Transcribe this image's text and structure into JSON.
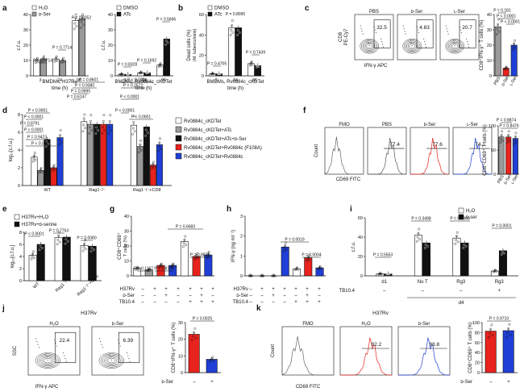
{
  "colors": {
    "red": "#e8221c",
    "blue": "#1f3fd6",
    "gray": "#9a9a9a",
    "black": "#111111",
    "white": "#ffffff"
  },
  "panel_letters": [
    "a",
    "b",
    "c",
    "d",
    "e",
    "f",
    "g",
    "h",
    "i",
    "j",
    "k"
  ],
  "chart_data": [
    {
      "id": "a1",
      "type": "bar",
      "panel": "a",
      "ylabel": "c.f.u.",
      "xlabel": "BMDMs, H37Rv",
      "xlabel2": "time (h)",
      "categories": [
        "3",
        "24",
        "96"
      ],
      "ylim": [
        0,
        40
      ],
      "yticks": [
        0,
        10,
        20,
        30,
        40
      ],
      "series": [
        {
          "name": "H₂O",
          "color": "white",
          "values": [
            10,
            11,
            36
          ]
        },
        {
          "name": "ᴅ-Ser",
          "color": "gray",
          "values": [
            11,
            10,
            37
          ]
        }
      ],
      "pvalues": [
        "P = 0.7714",
        "P = 0.7714",
        "P = 0.8352"
      ]
    },
    {
      "id": "a2",
      "type": "bar",
      "panel": "a",
      "ylabel": "c.f.u.",
      "xlabel": "BMDMs, Rv0884c_cKD",
      "xlabel_sup": "Tet",
      "xlabel2": "time (h)",
      "categories": [
        "3",
        "24",
        "96"
      ],
      "ylim": [
        0,
        40
      ],
      "yticks": [
        0,
        10,
        20,
        30,
        40
      ],
      "series": [
        {
          "name": "DMSO",
          "color": "white",
          "values": [
            1,
            2,
            7
          ]
        },
        {
          "name": "ATc",
          "color": "black",
          "values": [
            1,
            2,
            24
          ]
        }
      ],
      "pvalues": [
        "P = 0.8328",
        "P = 0.1692",
        "P = 0.5696"
      ]
    },
    {
      "id": "b",
      "type": "bar",
      "panel": "b",
      "ylabel": "Dead cells (%)",
      "ylabel2": "(M. tuberculosis)",
      "xlabel": "BMDMs, Rv0884c_cKD",
      "xlabel_sup": "Tet",
      "xlabel2": "time (h)",
      "categories": [
        "3",
        "24",
        "96"
      ],
      "ylim": [
        0,
        60
      ],
      "yticks": [
        0,
        20,
        40,
        60
      ],
      "series": [
        {
          "name": "DMSO",
          "color": "white",
          "values": [
            2,
            47,
            12
          ]
        },
        {
          "name": "ATc",
          "color": "black",
          "values": [
            2,
            47,
            10
          ]
        }
      ],
      "pvalues": [
        "P = 0.4705",
        "P = 0.8095",
        "P = 0.7439"
      ]
    },
    {
      "id": "c",
      "type": "bar",
      "panel": "c",
      "ylabel": "CD8⁺IFN-γ⁺ T cells (%)",
      "categories": [
        "PBS",
        "ᴅ-Ser",
        "ʟ-Ser"
      ],
      "ylim": [
        0,
        40
      ],
      "yticks": [
        0,
        10,
        20,
        30,
        40
      ],
      "series": [
        {
          "name": "",
          "values": [
            32,
            5,
            20
          ],
          "colors": [
            "gray",
            "red",
            "blue"
          ]
        }
      ],
      "pvalues": [
        "P = 0.181",
        "P < 0.0001",
        "P < 0.0001"
      ]
    },
    {
      "id": "d",
      "type": "bar",
      "panel": "d",
      "ylabel": "log₁₀[c.f.u.]",
      "categories": [
        "WT",
        "Rag1⁻/⁻",
        "Rag1⁻/⁻+CD8"
      ],
      "ylim": [
        0,
        8
      ],
      "yticks": [
        0,
        2,
        4,
        6,
        8
      ],
      "series": [
        {
          "name": "Rv0884c_cKD",
          "sup": "Tet",
          "color": "white",
          "values": [
            3.2,
            7.2,
            6.8
          ]
        },
        {
          "name": "Rv0884c_cKD",
          "sup": "Tet",
          "suffix": "+ATc",
          "color": "gray",
          "values": [
            1.7,
            6.9,
            4.4
          ]
        },
        {
          "name": "Rv0884c_cKD",
          "sup": "Tet",
          "suffix": "+ATc+ᴅ-Ser",
          "color": "black",
          "values": [
            5.2,
            6.9,
            6.6
          ]
        },
        {
          "name": "Rv0884c_cKD",
          "sup": "Tet",
          "suffix": "+Rv0884c (F108A)",
          "color": "red",
          "values": [
            2.0,
            6.9,
            2.3
          ]
        },
        {
          "name": "Rv0884c_cKD",
          "sup": "Tet",
          "suffix": "+Rv0884c",
          "color": "blue",
          "values": [
            5.4,
            6.9,
            4.6
          ]
        }
      ],
      "pvalues": [
        "P < 0.0001",
        "P = 0.9423",
        "P < 0.0001",
        "P = 0.8791",
        "P < 0.0001",
        "P < 0.0001",
        "P = 0.8601",
        "P = 0.9380",
        "P = 0.9995",
        "P = 0.6147",
        "P < 0.0001",
        "P = 0.2572",
        "P < 0.0001",
        "P < 0.0001",
        "P < 0.0001"
      ]
    },
    {
      "id": "e",
      "type": "bar",
      "panel": "e",
      "ylabel": "log₁₀[c.f.u.]",
      "categories": [
        "WT",
        "Rag1⁻/⁻",
        "Rag1⁻/⁻+CD8"
      ],
      "ylim": [
        0,
        8
      ],
      "yticks": [
        0,
        2,
        4,
        6,
        8
      ],
      "series": [
        {
          "name": "H37Rv+H₂O",
          "color": "white",
          "values": [
            4.2,
            7.1,
            5.8
          ]
        },
        {
          "name": "H37Rv+ᴅ-serine",
          "color": "black",
          "values": [
            6.0,
            7.2,
            5.7
          ]
        }
      ],
      "pvalues": [
        "P < 0.0001",
        "P = 0.7763",
        "P = 0.0080"
      ]
    },
    {
      "id": "f",
      "type": "bar",
      "panel": "f",
      "ylabel": "CD8⁺CD69⁺ T cells (%)",
      "categories": [
        "PBS",
        "ᴅ-Ser",
        "ʟ-Ser"
      ],
      "ylim": [
        0,
        100
      ],
      "yticks": [
        0,
        50,
        100
      ],
      "series": [
        {
          "name": "",
          "values": [
            77,
            77,
            74
          ],
          "colors": [
            "gray",
            "red",
            "blue"
          ]
        }
      ],
      "pvalues": [
        "P = 0.8874",
        "P = 0.8476"
      ]
    },
    {
      "id": "g",
      "type": "bar",
      "panel": "g",
      "ylabel": "CD8⁺CD69⁺",
      "ylabel2": "T cells (%)",
      "ylim": [
        0,
        40
      ],
      "yticks": [
        0,
        10,
        20,
        30,
        40
      ],
      "categories": [
        "1",
        "2",
        "3",
        "4",
        "5",
        "6",
        "7"
      ],
      "series": [
        {
          "name": "",
          "values": [
            5,
            4,
            7,
            7,
            23,
            13,
            14
          ],
          "colors": [
            "white",
            "gray",
            "red",
            "blue",
            "white",
            "red",
            "blue"
          ]
        }
      ],
      "pvalues": [
        "P = 0.1167",
        "P = 0.8739",
        "P = 0.6683",
        "P = 0.8833"
      ]
    },
    {
      "id": "h",
      "type": "bar",
      "panel": "h",
      "ylabel": "IFN-γ (ng ml⁻¹)",
      "ylim": [
        0,
        3
      ],
      "yticks": [
        0,
        1,
        2,
        3
      ],
      "categories": [
        "1",
        "2",
        "3",
        "4",
        "5",
        "6",
        "7"
      ],
      "series": [
        {
          "name": "",
          "values": [
            0,
            0,
            0,
            1.45,
            0.35,
            0.9,
            0.4
          ],
          "colors": [
            "white",
            "gray",
            "red",
            "blue",
            "white",
            "red",
            "blue"
          ]
        }
      ],
      "pvalues": [
        "P = 0.0019",
        "P = 0.0004"
      ]
    },
    {
      "id": "i",
      "type": "bar",
      "panel": "i",
      "ylabel": "c.f.u.",
      "ylim": [
        0,
        60
      ],
      "yticks": [
        0,
        20,
        40,
        60
      ],
      "categories": [
        "d1",
        "No T",
        "Rg3",
        "Rg3"
      ],
      "group_label": "d4",
      "series": [
        {
          "name": "H₂O",
          "color": "white",
          "values": [
            2,
            42,
            39,
            5
          ]
        },
        {
          "name": "ᴅ-ser",
          "color": "black",
          "values": [
            2,
            34,
            34,
            26
          ]
        }
      ],
      "pvalues": [
        "P = 0.5563",
        "P = 0.3498",
        "P = 0.9993",
        "P = 0.0001"
      ]
    },
    {
      "id": "j",
      "type": "bar",
      "panel": "j",
      "ylabel": "CD8⁺IFN-γ⁺ T cells (%)",
      "ylim": [
        0,
        30
      ],
      "yticks": [
        0,
        10,
        20,
        30
      ],
      "categories": [
        "–",
        "+"
      ],
      "series": [
        {
          "name": "",
          "values": [
            23,
            8
          ],
          "colors": [
            "red",
            "blue"
          ]
        }
      ],
      "pvalues": [
        "P = 0.0025"
      ]
    },
    {
      "id": "k",
      "type": "bar",
      "panel": "k",
      "ylabel": "CD8⁺CD69⁺ T cells (%)",
      "ylim": [
        0,
        100
      ],
      "yticks": [
        0,
        20,
        40,
        60,
        80,
        100
      ],
      "categories": [
        "–",
        "+"
      ],
      "series": [
        {
          "name": "",
          "values": [
            83,
            84
          ],
          "colors": [
            "red",
            "blue"
          ]
        }
      ],
      "pvalues": [
        "P = 0.9710"
      ]
    }
  ],
  "flow": {
    "c": {
      "yaxis": "CD8",
      "yaxis2": "PE-Cy7",
      "xaxis": "IFN-γ APC",
      "plots": [
        {
          "label": "PBS",
          "value": "32.5"
        },
        {
          "label": "ᴅ-Ser",
          "value": "4.83"
        },
        {
          "label": "ʟ-Ser",
          "value": "20.7"
        }
      ]
    },
    "f": {
      "yaxis": "Count",
      "xaxis": "CD69 FITC",
      "plots": [
        {
          "label": "FMO",
          "value": ""
        },
        {
          "label": "PBS",
          "value": "77.4"
        },
        {
          "label": "ᴅ-Ser",
          "value": "77.6"
        },
        {
          "label": "ʟ-Ser",
          "value": "74.1"
        }
      ]
    },
    "j": {
      "yaxis": "SSC",
      "xaxis": "IFN-γ APC",
      "title": "H37Rv",
      "plots": [
        {
          "label": "H₂O",
          "value": "22.4"
        },
        {
          "label": "ᴅ-Ser",
          "value": "6.39"
        }
      ]
    },
    "k": {
      "yaxis": "Count",
      "xaxis": "CD69 FITC",
      "title": "H37Rv",
      "plots": [
        {
          "label": "FMO",
          "value": ""
        },
        {
          "label": "H₂O",
          "value": "82.2"
        },
        {
          "label": "ᴅ-Ser",
          "value": "88.8"
        }
      ]
    }
  },
  "treatment_rows": {
    "g": {
      "rows": [
        "H37Rv",
        "ᴅ-Ser",
        "TB10.4"
      ]
    },
    "h": {
      "rows": [
        "H37Rv",
        "ᴅ-Ser",
        "TB10.4"
      ]
    },
    "i": {
      "rows": [
        "TB10.4"
      ],
      "d4": "d4"
    },
    "j": {
      "rows": [
        "ᴅ-Ser"
      ]
    },
    "k": {
      "rows": [
        "ᴅ-Ser"
      ]
    }
  }
}
